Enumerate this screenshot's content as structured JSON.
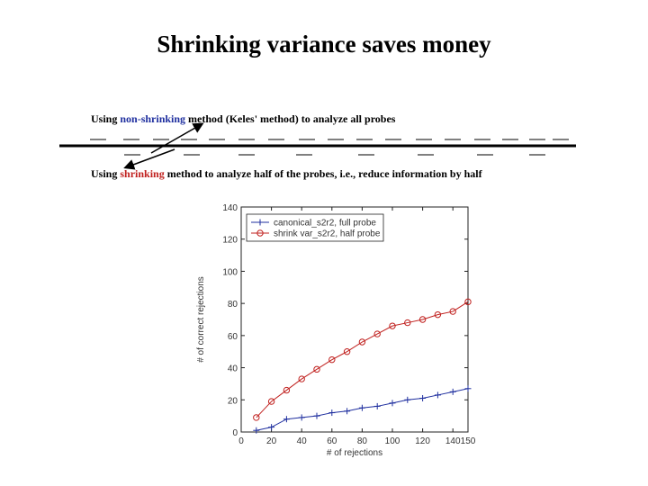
{
  "slide": {
    "title": "Shrinking variance saves money",
    "note_top": {
      "before": "Using ",
      "highlight": "non-shrinking",
      "after": " method (Keles' method) to analyze all probes",
      "highlight_color": "#1f2f9f"
    },
    "note_bottom": {
      "before": "Using ",
      "highlight": "shrinking",
      "after": " method to analyze half of the probes, i.e., reduce information by half",
      "highlight_color": "#c0201e"
    }
  },
  "chart_data": {
    "type": "line",
    "xlabel": "# of rejections",
    "ylabel": "# of correct rejections",
    "xlim": [
      0,
      150
    ],
    "ylim": [
      0,
      140
    ],
    "xticks": [
      0,
      20,
      40,
      60,
      80,
      100,
      120,
      140,
      150
    ],
    "xtick_labels": [
      "0",
      "20",
      "40",
      "60",
      "80",
      "100",
      "120",
      "140",
      "150"
    ],
    "yticks": [
      0,
      20,
      40,
      60,
      80,
      100,
      120,
      140
    ],
    "ytick_labels": [
      "0",
      "20",
      "40",
      "60",
      "80",
      "100",
      "120",
      "140"
    ],
    "legend_position": "top-left",
    "grid": false,
    "series": [
      {
        "name": "canonical_s2r2, full probe",
        "color": "#1f2f9f",
        "marker": "plus",
        "x": [
          10,
          20,
          30,
          40,
          50,
          60,
          70,
          80,
          90,
          100,
          110,
          120,
          130,
          140,
          150
        ],
        "y": [
          1,
          3,
          8,
          9,
          10,
          12,
          13,
          15,
          16,
          18,
          20,
          21,
          23,
          25,
          27
        ]
      },
      {
        "name": "shrink var_s2r2, half probe",
        "color": "#c0201e",
        "marker": "circle",
        "x": [
          10,
          20,
          30,
          40,
          50,
          60,
          70,
          80,
          90,
          100,
          110,
          120,
          130,
          140,
          150
        ],
        "y": [
          9,
          19,
          26,
          33,
          39,
          45,
          50,
          56,
          61,
          66,
          68,
          70,
          73,
          75,
          81
        ]
      }
    ]
  }
}
